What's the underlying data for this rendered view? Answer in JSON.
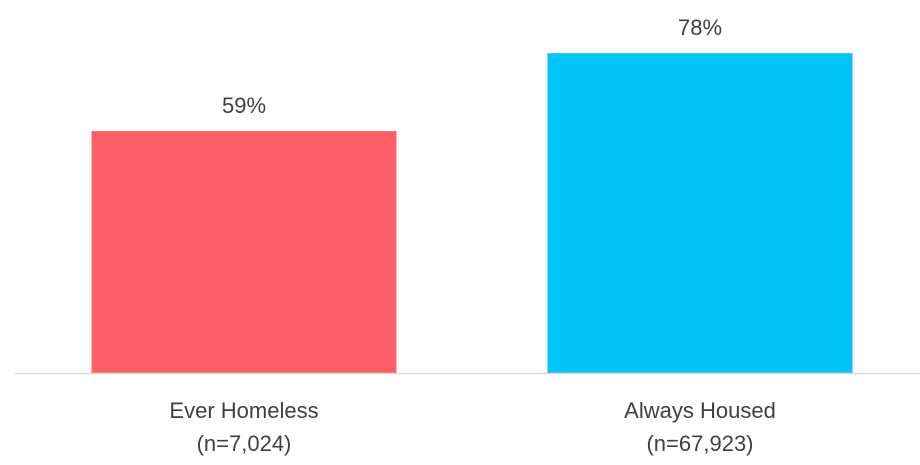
{
  "chart_data": {
    "type": "bar",
    "categories": [
      {
        "line1": "Ever Homeless",
        "line2": "(n=7,024)"
      },
      {
        "line1": "Always Housed",
        "line2": "(n=67,923)"
      }
    ],
    "values": [
      59,
      78
    ],
    "data_labels": [
      "59%",
      "78%"
    ],
    "colors": [
      "#FF5F68",
      "#00C4F5"
    ],
    "axis_color": "#D9D9D9",
    "ylim": [
      0,
      100
    ],
    "grid": false,
    "legend": "none"
  }
}
